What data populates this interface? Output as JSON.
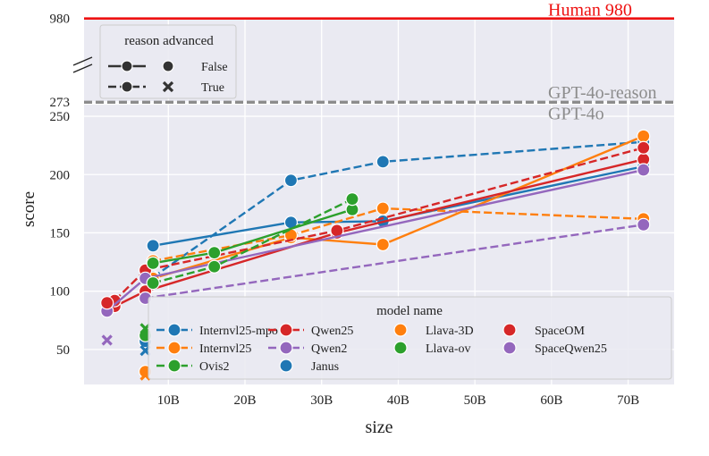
{
  "chart_data": {
    "type": "line",
    "xlabel": "size",
    "ylabel": "score",
    "xlim": [
      -1,
      76
    ],
    "x_ticks": [
      10,
      20,
      30,
      40,
      50,
      60,
      70
    ],
    "x_tick_labels": [
      "10B",
      "20B",
      "30B",
      "40B",
      "50B",
      "60B",
      "70B"
    ],
    "y_break": {
      "lower_range": [
        20,
        260
      ],
      "upper_range": [
        265,
        985
      ]
    },
    "y_ticks": [
      50,
      100,
      150,
      200,
      250,
      273,
      980
    ],
    "y_tick_labels": [
      "50",
      "100",
      "150",
      "200",
      "250",
      "273",
      "980"
    ],
    "reference_lines": [
      {
        "label": "Human 980",
        "value": 980,
        "color": "#ee1111",
        "style": "solid"
      },
      {
        "label": "GPT-4o-reason",
        "value": 273,
        "color": "#8c8c8c",
        "style": "dashed"
      },
      {
        "label": "GPT-4o",
        "value": 267,
        "color": "#8c8c8c",
        "style": "dashed"
      }
    ],
    "style_legend": {
      "title": "reason advanced",
      "entries": [
        {
          "label": "False",
          "line_style": "solid",
          "marker": "circle"
        },
        {
          "label": "True",
          "line_style": "dashed",
          "marker": "x"
        }
      ]
    },
    "model_legend": {
      "title": "model name",
      "entries": [
        {
          "label": "Internvl25-mpo",
          "color": "#1f77b4",
          "kind": "line-dashed"
        },
        {
          "label": "Qwen25",
          "color": "#d62728",
          "kind": "line-dashed"
        },
        {
          "label": "Llava-3D",
          "color": "#ff7f0e",
          "kind": "marker"
        },
        {
          "label": "SpaceOM",
          "color": "#d62728",
          "kind": "marker"
        },
        {
          "label": "Internvl25",
          "color": "#ff7f0e",
          "kind": "line-dashed"
        },
        {
          "label": "Qwen2",
          "color": "#9467bd",
          "kind": "line-dashed"
        },
        {
          "label": "Llava-ov",
          "color": "#2ca02c",
          "kind": "marker"
        },
        {
          "label": "SpaceQwen25",
          "color": "#9467bd",
          "kind": "marker"
        },
        {
          "label": "Ovis2",
          "color": "#2ca02c",
          "kind": "line-dashed"
        },
        {
          "label": "Janus",
          "color": "#1f77b4",
          "kind": "marker"
        }
      ]
    },
    "series": [
      {
        "name": "Internvl25-mpo",
        "reason_advanced": "False",
        "color": "#1f77b4",
        "style": "solid",
        "x": [
          8,
          26,
          38,
          72
        ],
        "y": [
          139,
          159,
          160,
          207
        ]
      },
      {
        "name": "Internvl25-mpo",
        "reason_advanced": "True",
        "color": "#1f77b4",
        "style": "dashed",
        "x": [
          8,
          26,
          38,
          72
        ],
        "y": [
          112,
          195,
          211,
          228
        ]
      },
      {
        "name": "Internvl25",
        "reason_advanced": "False",
        "color": "#ff7f0e",
        "style": "solid",
        "x": [
          8,
          26,
          38,
          72
        ],
        "y": [
          111,
          146,
          140,
          233
        ]
      },
      {
        "name": "Internvl25",
        "reason_advanced": "True",
        "color": "#ff7f0e",
        "style": "dashed",
        "x": [
          8,
          26,
          38,
          72
        ],
        "y": [
          126,
          148,
          171,
          162
        ]
      },
      {
        "name": "Qwen25",
        "reason_advanced": "False",
        "color": "#d62728",
        "style": "solid",
        "x": [
          3,
          7,
          32,
          72
        ],
        "y": [
          87,
          100,
          150,
          213
        ]
      },
      {
        "name": "Qwen25",
        "reason_advanced": "True",
        "color": "#d62728",
        "style": "dashed",
        "x": [
          3,
          7,
          32,
          72
        ],
        "y": [
          92,
          118,
          152,
          223
        ]
      },
      {
        "name": "Qwen2",
        "reason_advanced": "False",
        "color": "#9467bd",
        "style": "solid",
        "x": [
          2,
          7,
          72
        ],
        "y": [
          83,
          111,
          204
        ]
      },
      {
        "name": "Qwen2",
        "reason_advanced": "True",
        "color": "#9467bd",
        "style": "dashed",
        "x": [
          7,
          72
        ],
        "y": [
          94,
          157
        ]
      },
      {
        "name": "Ovis2",
        "reason_advanced": "False",
        "color": "#2ca02c",
        "style": "solid",
        "x": [
          8,
          16,
          34
        ],
        "y": [
          124,
          133,
          170
        ]
      },
      {
        "name": "Ovis2",
        "reason_advanced": "True",
        "color": "#2ca02c",
        "style": "dashed",
        "x": [
          8,
          16,
          34
        ],
        "y": [
          107,
          121,
          179
        ]
      }
    ],
    "single_points": [
      {
        "name": "Janus",
        "reason_advanced": "False",
        "color": "#1f77b4",
        "x": 7,
        "y": 57
      },
      {
        "name": "Janus",
        "reason_advanced": "True",
        "color": "#1f77b4",
        "x": 7,
        "y": 49
      },
      {
        "name": "Llava-3D",
        "reason_advanced": "False",
        "color": "#ff7f0e",
        "x": 7,
        "y": 31
      },
      {
        "name": "Llava-3D",
        "reason_advanced": "True",
        "color": "#ff7f0e",
        "x": 7,
        "y": 28
      },
      {
        "name": "Llava-ov",
        "reason_advanced": "False",
        "color": "#2ca02c",
        "x": 7,
        "y": 62
      },
      {
        "name": "Llava-ov",
        "reason_advanced": "True",
        "color": "#2ca02c",
        "x": 7,
        "y": 68
      },
      {
        "name": "SpaceOM",
        "reason_advanced": "False",
        "color": "#d62728",
        "x": 2,
        "y": 90
      },
      {
        "name": "SpaceQwen25",
        "reason_advanced": "True",
        "color": "#9467bd",
        "x": 2,
        "y": 58
      }
    ]
  }
}
